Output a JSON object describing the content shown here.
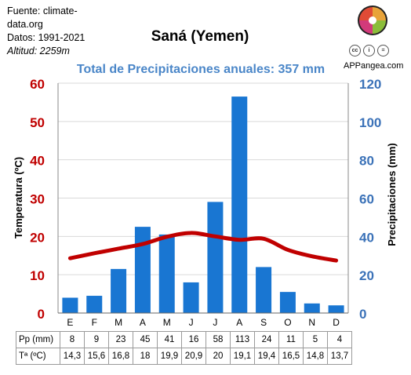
{
  "source": {
    "line1": "Fuente: climate-",
    "line2": "data.org",
    "dates": "Datos: 1991-2021",
    "altitude": "Altitud: 2259m"
  },
  "title": "Saná (Yemen)",
  "subtitle": "Total de Precipitaciones anuales: 357 mm",
  "brand": "APPangea.com",
  "license_icons": [
    "cc",
    "attribution-icon",
    "equals-icon"
  ],
  "colors": {
    "bars": "#1976d2",
    "line": "#c00000",
    "left_axis": "#c00000",
    "right_axis": "#3b72b8",
    "subtitle": "#4a86c8"
  },
  "chart_data": {
    "type": "bar+line",
    "categories": [
      "E",
      "F",
      "M",
      "A",
      "M",
      "J",
      "J",
      "A",
      "S",
      "O",
      "N",
      "D"
    ],
    "series": [
      {
        "name": "Pp (mm)",
        "type": "bar",
        "axis": "right",
        "values": [
          8,
          9,
          23,
          45,
          41,
          16,
          58,
          113,
          24,
          11,
          5,
          4
        ]
      },
      {
        "name": "Tª (ºC)",
        "type": "line",
        "axis": "left",
        "values": [
          14.3,
          15.6,
          16.8,
          18,
          19.9,
          20.9,
          20,
          19.1,
          19.4,
          16.5,
          14.8,
          13.7
        ]
      }
    ],
    "ylabel_left": "Temperatura (ºC)",
    "ylabel_right": "Precipitaciones (mm)",
    "ylim_left": [
      0,
      60
    ],
    "ylim_right": [
      0,
      120
    ],
    "yticks_left": [
      "0",
      "10",
      "20",
      "30",
      "40",
      "50",
      "60"
    ],
    "yticks_right": [
      "0",
      "20",
      "40",
      "60",
      "80",
      "100",
      "120"
    ],
    "grid": "horizontal"
  },
  "table": {
    "rows": [
      {
        "label": "Pp (mm)",
        "cells": [
          "8",
          "9",
          "23",
          "45",
          "41",
          "16",
          "58",
          "113",
          "24",
          "11",
          "5",
          "4"
        ]
      },
      {
        "label": "Tª (ºC)",
        "cells": [
          "14,3",
          "15,6",
          "16,8",
          "18",
          "19,9",
          "20,9",
          "20",
          "19,1",
          "19,4",
          "16,5",
          "14,8",
          "13,7"
        ]
      }
    ]
  }
}
